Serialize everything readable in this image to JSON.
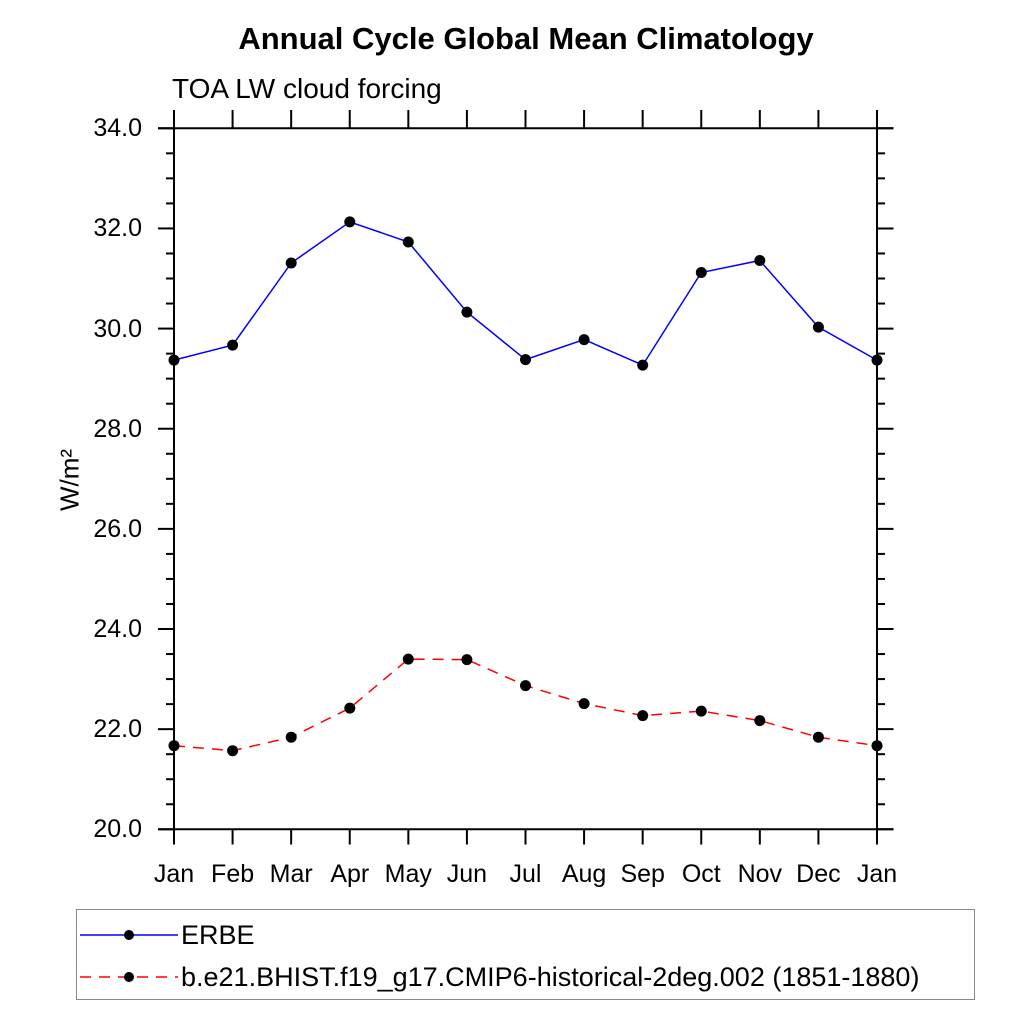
{
  "page": {
    "title": "Annual Cycle Global Mean Climatology",
    "subtitle": "TOA LW cloud forcing"
  },
  "chart_data": {
    "type": "line",
    "title": "Annual Cycle Global Mean Climatology",
    "subtitle": "TOA LW cloud forcing",
    "xlabel": "",
    "ylabel": "W/m²",
    "categories": [
      "Jan",
      "Feb",
      "Mar",
      "Apr",
      "May",
      "Jun",
      "Jul",
      "Aug",
      "Sep",
      "Oct",
      "Nov",
      "Dec",
      "Jan"
    ],
    "ylim": [
      20.0,
      34.0
    ],
    "ytick_step": 2.0,
    "ytick_labels": [
      "20.0",
      "22.0",
      "24.0",
      "26.0",
      "28.0",
      "30.0",
      "32.0",
      "34.0"
    ],
    "minor_tick_step": 0.5,
    "grid": false,
    "legend_position": "bottom",
    "axis_color": "#000000",
    "marker": "filled-circle",
    "series": [
      {
        "name": "ERBE",
        "color": "#0000ff",
        "style": "solid",
        "marker_color": "#000000",
        "values": [
          29.37,
          29.67,
          31.31,
          32.13,
          31.73,
          30.33,
          29.38,
          29.78,
          29.27,
          31.12,
          31.36,
          30.03,
          29.37
        ]
      },
      {
        "name": "b.e21.BHIST.f19_g17.CMIP6-historical-2deg.002 (1851-1880)",
        "color": "#ff0000",
        "style": "dashed",
        "marker_color": "#000000",
        "values": [
          21.67,
          21.57,
          21.84,
          22.42,
          23.4,
          23.39,
          22.87,
          22.51,
          22.27,
          22.36,
          22.17,
          21.84,
          21.67
        ]
      }
    ]
  }
}
